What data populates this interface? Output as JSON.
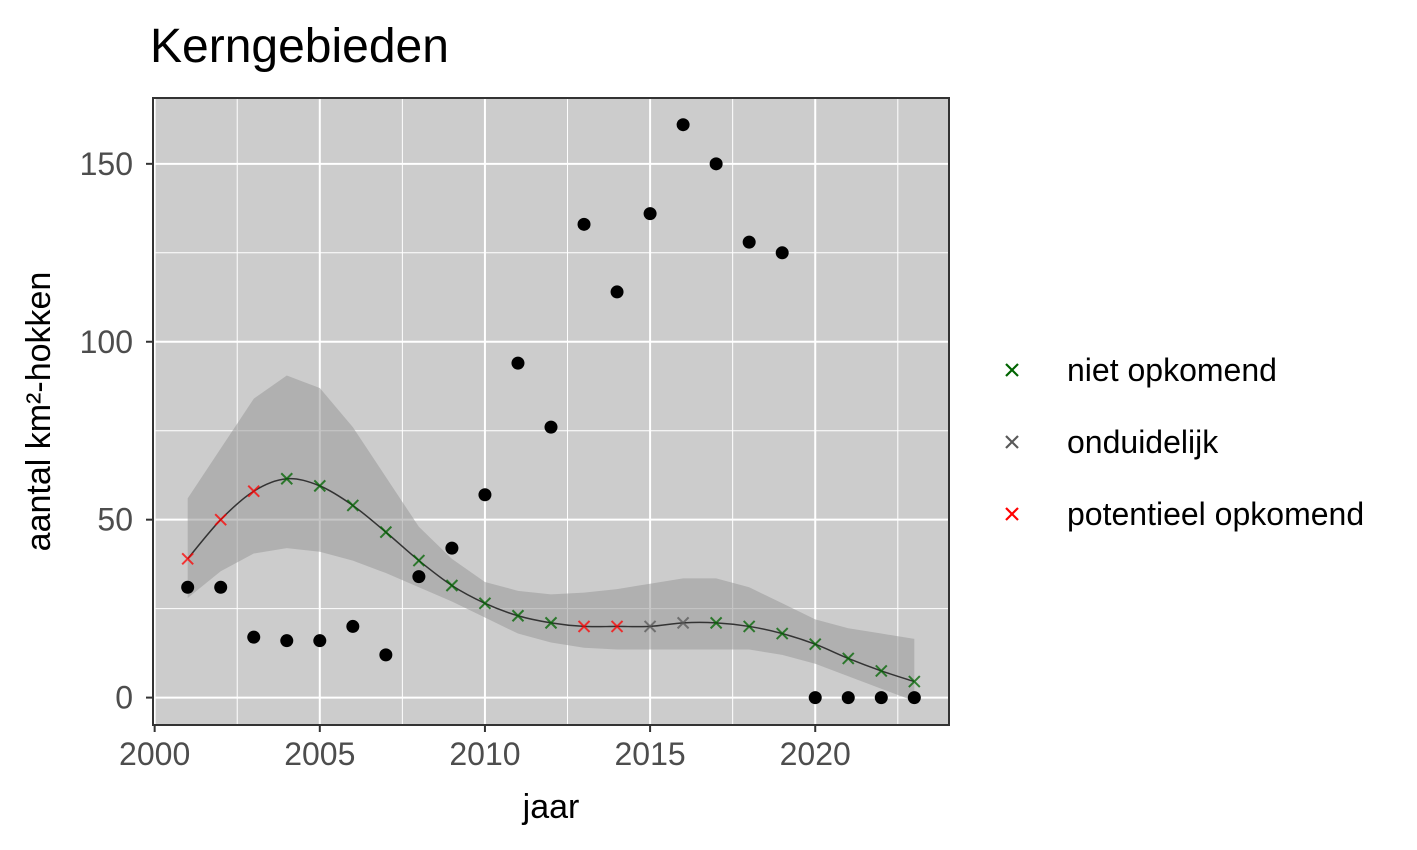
{
  "chart_data": {
    "type": "scatter",
    "title": "Kerngebieden",
    "xlabel": "jaar",
    "ylabel": "aantal km²-hokken",
    "xlim": [
      1999.95,
      2024.05
    ],
    "ylim": [
      -7.7,
      168.5
    ],
    "x_ticks": [
      2000,
      2005,
      2010,
      2015,
      2020
    ],
    "y_ticks": [
      0,
      50,
      100,
      150
    ],
    "x_tick_labels": [
      "2000",
      "2005",
      "2010",
      "2015",
      "2020"
    ],
    "y_tick_labels": [
      "0",
      "50",
      "100",
      "150"
    ],
    "grid": true,
    "background": "#cccccc",
    "legend_position": "right",
    "observed": {
      "x": [
        2001,
        2002,
        2003,
        2004,
        2005,
        2006,
        2007,
        2008,
        2009,
        2010,
        2011,
        2012,
        2013,
        2014,
        2015,
        2016,
        2017,
        2018,
        2019,
        2020,
        2021,
        2022,
        2023
      ],
      "y": [
        31,
        31,
        17,
        16,
        16,
        20,
        12,
        34,
        42,
        57,
        94,
        76,
        133,
        114,
        136,
        161,
        150,
        128,
        125,
        0,
        0,
        0,
        0
      ],
      "color": "#000000"
    },
    "trend": {
      "x": [
        2001,
        2002,
        2003,
        2004,
        2005,
        2006,
        2007,
        2008,
        2009,
        2010,
        2011,
        2012,
        2013,
        2014,
        2015,
        2016,
        2017,
        2018,
        2019,
        2020,
        2021,
        2022,
        2023
      ],
      "y": [
        39,
        50,
        58,
        61.5,
        59.5,
        54,
        46.5,
        38.5,
        31.5,
        26.5,
        23,
        21,
        20,
        20,
        20,
        21,
        21,
        20,
        18,
        15,
        11,
        7.5,
        4.5
      ],
      "lower": [
        28,
        35.5,
        40.5,
        42,
        41,
        38.5,
        35,
        31,
        27,
        22.5,
        18,
        15.5,
        14,
        13.5,
        13.5,
        13.5,
        13.5,
        13.5,
        12,
        9.5,
        6,
        2.5,
        -1
      ],
      "upper": [
        56,
        70,
        84,
        90.5,
        87,
        76,
        62,
        48,
        39,
        32.5,
        30,
        29,
        29.5,
        30.5,
        32,
        33.5,
        33.5,
        31,
        26.5,
        22,
        19.5,
        18,
        16.5
      ],
      "category": [
        "potentieel opkomend",
        "potentieel opkomend",
        "potentieel opkomend",
        "niet opkomend",
        "niet opkomend",
        "niet opkomend",
        "niet opkomend",
        "niet opkomend",
        "niet opkomend",
        "niet opkomend",
        "niet opkomend",
        "niet opkomend",
        "potentieel opkomend",
        "potentieel opkomend",
        "onduidelijk",
        "onduidelijk",
        "niet opkomend",
        "niet opkomend",
        "niet opkomend",
        "niet opkomend",
        "niet opkomend",
        "niet opkomend",
        "niet opkomend"
      ],
      "line_color": "#333333",
      "ribbon_color": "#999999"
    },
    "legend": [
      {
        "label": "niet opkomend",
        "color": "#006400"
      },
      {
        "label": "onduidelijk",
        "color": "#595959"
      },
      {
        "label": "potentieel opkomend",
        "color": "#ff0000"
      }
    ]
  }
}
